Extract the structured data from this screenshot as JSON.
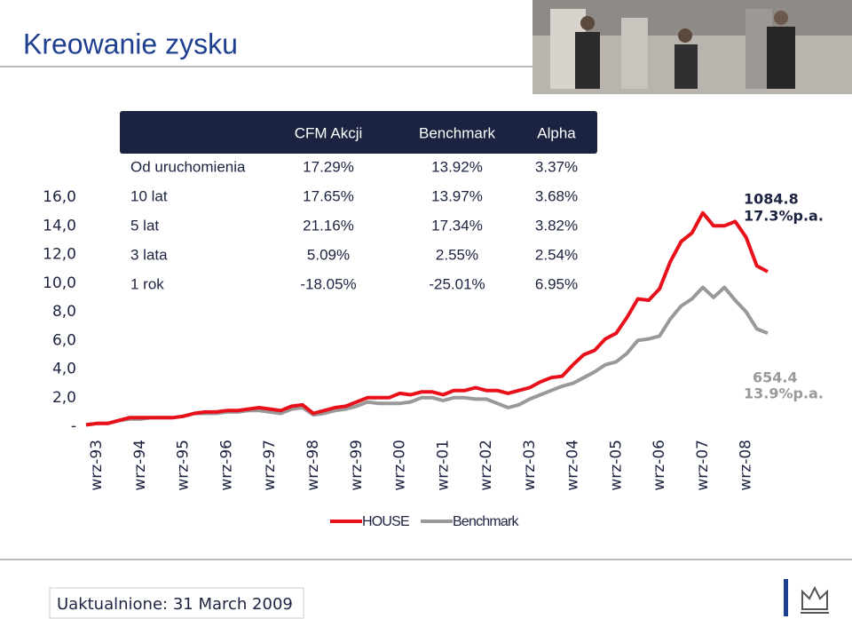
{
  "header": {
    "title": "Kreowanie zysku"
  },
  "table": {
    "headers": [
      "CFM Akcji",
      "Benchmark",
      "Alpha"
    ],
    "rows": [
      [
        "Od uruchomienia",
        "17.29%",
        "13.92%",
        "3.37%"
      ],
      [
        "10 lat",
        "17.65%",
        "13.97%",
        "3.68%"
      ],
      [
        "5 lat",
        "21.16%",
        "17.34%",
        "3.82%"
      ],
      [
        "3 lata",
        "5.09%",
        "2.55%",
        "2.54%"
      ],
      [
        "1 rok",
        "-18.05%",
        "-25.01%",
        "6.95%"
      ]
    ]
  },
  "chart_data": {
    "type": "line",
    "categories": [
      null,
      "wrz-93",
      null,
      null,
      null,
      "wrz-94",
      null,
      null,
      null,
      "wrz-95",
      null,
      null,
      null,
      "wrz-96",
      null,
      null,
      null,
      "wrz-97",
      null,
      null,
      null,
      "wrz-98",
      null,
      null,
      null,
      "wrz-99",
      null,
      null,
      null,
      "wrz-00",
      null,
      null,
      null,
      "wrz-01",
      null,
      null,
      null,
      "wrz-02",
      null,
      null,
      null,
      "wrz-03",
      null,
      null,
      null,
      "wrz-04",
      null,
      null,
      null,
      "wrz-05",
      null,
      null,
      null,
      "wrz-06",
      null,
      null,
      null,
      "wrz-07",
      null,
      null,
      null,
      "wrz-08",
      null,
      null
    ],
    "series": [
      {
        "name": "HOUSE",
        "color": "#e8101a",
        "values": [
          0.1,
          0.2,
          0.2,
          0.4,
          0.6,
          0.6,
          0.6,
          0.6,
          0.6,
          0.7,
          0.9,
          1.0,
          1.0,
          1.1,
          1.1,
          1.2,
          1.3,
          1.2,
          1.1,
          1.4,
          1.5,
          0.9,
          1.1,
          1.3,
          1.4,
          1.7,
          2.0,
          2.0,
          2.0,
          2.3,
          2.2,
          2.4,
          2.4,
          2.2,
          2.5,
          2.5,
          2.7,
          2.5,
          2.5,
          2.3,
          2.5,
          2.7,
          3.1,
          3.4,
          3.5,
          4.3,
          5.0,
          5.3,
          6.1,
          6.5,
          7.6,
          8.9,
          8.8,
          9.6,
          11.5,
          12.9,
          13.5,
          14.9,
          14.0,
          14.0,
          14.3,
          13.2,
          11.2,
          10.8
        ]
      },
      {
        "name": "Benchmark",
        "color": "#999999",
        "values": [
          0.1,
          0.2,
          0.2,
          0.4,
          0.5,
          0.5,
          0.6,
          0.6,
          0.6,
          0.7,
          0.9,
          0.9,
          0.9,
          1.0,
          1.0,
          1.1,
          1.1,
          1.0,
          0.9,
          1.2,
          1.3,
          0.8,
          0.9,
          1.1,
          1.2,
          1.4,
          1.7,
          1.6,
          1.6,
          1.6,
          1.7,
          2.0,
          2.0,
          1.8,
          2.0,
          2.0,
          1.9,
          1.9,
          1.6,
          1.3,
          1.5,
          1.9,
          2.2,
          2.5,
          2.8,
          3.0,
          3.4,
          3.8,
          4.3,
          4.5,
          5.1,
          6.0,
          6.1,
          6.3,
          7.5,
          8.4,
          8.9,
          9.7,
          9.0,
          9.7,
          8.8,
          8.0,
          6.8,
          6.5
        ]
      }
    ],
    "ylim": [
      0,
      16
    ],
    "yticks": [
      {
        "value": 0,
        "label": "-"
      },
      {
        "value": 2,
        "label": "2,0"
      },
      {
        "value": 4,
        "label": "4,0"
      },
      {
        "value": 6,
        "label": "6,0"
      },
      {
        "value": 8,
        "label": "8,0"
      },
      {
        "value": 10,
        "label": "10,0"
      },
      {
        "value": 12,
        "label": "12,0"
      },
      {
        "value": 14,
        "label": "14,0"
      },
      {
        "value": 16,
        "label": "16,0"
      }
    ],
    "annotations": [
      "1084.8",
      "17.3%p.a.",
      "654.4",
      "13.9%p.a."
    ]
  },
  "footer": {
    "updated": "Uaktualnione: 31 March 2009"
  }
}
